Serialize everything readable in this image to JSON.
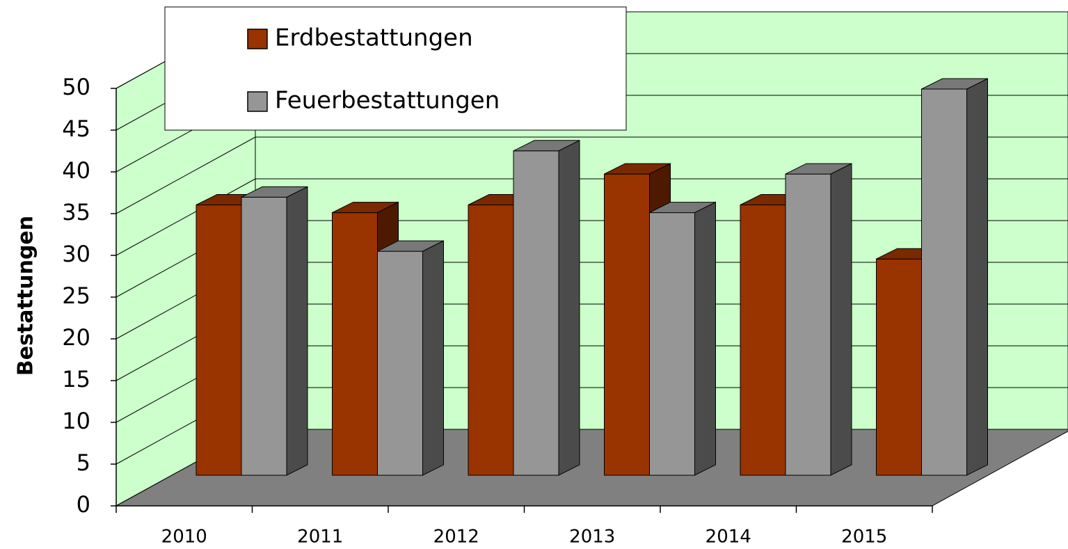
{
  "chart_data": {
    "type": "bar3d",
    "categories": [
      "2010",
      "2011",
      "2012",
      "2013",
      "2014",
      "2015"
    ],
    "series": [
      {
        "name": "Erdbestattungen",
        "color": "#993300",
        "values": [
          35,
          34,
          35,
          39,
          35,
          28
        ]
      },
      {
        "name": "Feuerbestattungen",
        "color": "#969696",
        "values": [
          36,
          29,
          42,
          34,
          39,
          50
        ]
      }
    ],
    "y_axis_label": "Bestattungen",
    "ylim": [
      0,
      50
    ],
    "yticks": [
      0,
      5,
      10,
      15,
      20,
      25,
      30,
      35,
      40,
      45,
      50
    ],
    "grid": true
  }
}
